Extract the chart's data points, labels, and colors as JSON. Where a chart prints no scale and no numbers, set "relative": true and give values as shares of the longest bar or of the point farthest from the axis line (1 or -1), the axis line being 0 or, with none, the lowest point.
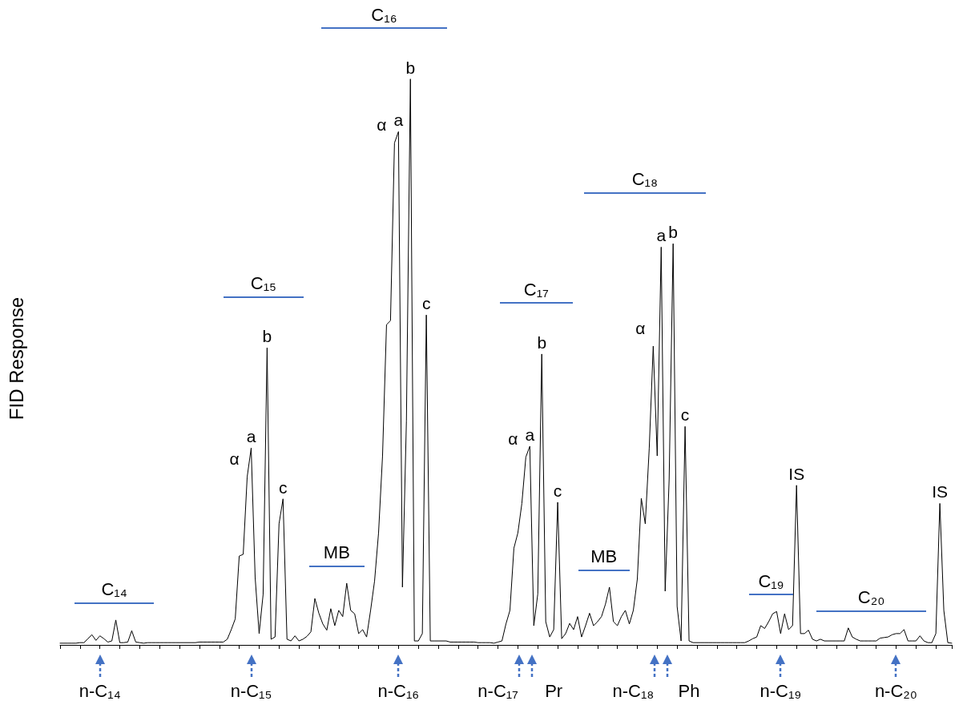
{
  "chart_data": {
    "type": "line",
    "ylabel": "FID Response",
    "relative": true,
    "tick_labels": "x",
    "color": "#000000",
    "categories": [
      null,
      null,
      null,
      null,
      null,
      null,
      null,
      null,
      null,
      null,
      "n-C₁₄",
      null,
      null,
      null,
      null,
      null,
      null,
      null,
      null,
      null,
      null,
      null,
      null,
      null,
      null,
      null,
      null,
      null,
      null,
      null,
      null,
      null,
      null,
      null,
      null,
      null,
      null,
      null,
      null,
      null,
      null,
      null,
      null,
      null,
      null,
      null,
      null,
      null,
      "n-C₁₅",
      null,
      null,
      null,
      null,
      null,
      null,
      null,
      null,
      null,
      null,
      null,
      null,
      null,
      null,
      null,
      null,
      null,
      null,
      null,
      null,
      null,
      null,
      null,
      null,
      null,
      null,
      null,
      null,
      null,
      null,
      null,
      null,
      null,
      null,
      null,
      null,
      "n-C₁₆",
      null,
      null,
      null,
      null,
      null,
      null,
      null,
      null,
      null,
      null,
      null,
      null,
      null,
      null,
      null,
      null,
      null,
      null,
      null,
      null,
      null,
      null,
      null,
      null,
      "n-C₁₇",
      null,
      null,
      null,
      null,
      null,
      null,
      null,
      null,
      null,
      null,
      null,
      null,
      null,
      "Pr",
      null,
      null,
      null,
      null,
      null,
      null,
      null,
      null,
      null,
      null,
      null,
      null,
      null,
      null,
      null,
      null,
      null,
      null,
      null,
      "n-C₁₈",
      null,
      null,
      null,
      null,
      null,
      null,
      null,
      null,
      null,
      null,
      null,
      null,
      null,
      "Ph",
      null,
      null,
      null,
      null,
      null,
      null,
      null,
      null,
      null,
      null,
      null,
      null,
      null,
      null,
      null,
      null,
      null,
      null,
      null,
      null,
      null,
      null,
      "n-C₁₉",
      null,
      null,
      null,
      null,
      null,
      null,
      null,
      null,
      null,
      null,
      null,
      null,
      null,
      null,
      null,
      null,
      null,
      null,
      null,
      null,
      null,
      null,
      null,
      null,
      null,
      null,
      null,
      null,
      "n-C₂₀",
      null,
      null,
      null,
      null,
      null,
      null,
      null,
      null,
      null,
      null,
      null,
      null,
      null,
      null
    ],
    "values": [
      0.003,
      0.003,
      0.003,
      0.003,
      0.003,
      0.004,
      0.004,
      0.011,
      0.018,
      0.008,
      0.016,
      0.011,
      0.005,
      0.007,
      0.044,
      0.004,
      0.004,
      0.005,
      0.025,
      0.005,
      0.004,
      0.003,
      0.004,
      0.004,
      0.004,
      0.004,
      0.004,
      0.004,
      0.004,
      0.004,
      0.004,
      0.004,
      0.004,
      0.004,
      0.004,
      0.005,
      0.005,
      0.005,
      0.005,
      0.005,
      0.005,
      0.005,
      0.01,
      0.027,
      0.046,
      0.157,
      0.16,
      0.297,
      0.348,
      0.119,
      0.02,
      0.089,
      0.525,
      0.01,
      0.014,
      0.214,
      0.258,
      0.01,
      0.007,
      0.016,
      0.007,
      0.01,
      0.015,
      0.023,
      0.082,
      0.056,
      0.037,
      0.026,
      0.064,
      0.034,
      0.061,
      0.05,
      0.109,
      0.061,
      0.055,
      0.02,
      0.027,
      0.014,
      0.061,
      0.113,
      0.198,
      0.334,
      0.566,
      0.573,
      0.887,
      0.907,
      0.102,
      0.396,
      1,
      0.007,
      0.007,
      0.02,
      0.583,
      0.007,
      0.007,
      0.007,
      0.007,
      0.007,
      0.005,
      0.005,
      0.005,
      0.005,
      0.005,
      0.005,
      0.005,
      0.004,
      0.004,
      0.004,
      0.004,
      0.003,
      0.005,
      0.007,
      0.037,
      0.061,
      0.171,
      0.198,
      0.25,
      0.332,
      0.351,
      0.034,
      0.09,
      0.514,
      0.041,
      0.014,
      0.027,
      0.252,
      0.011,
      0.02,
      0.038,
      0.027,
      0.05,
      0.014,
      0.034,
      0.056,
      0.034,
      0.041,
      0.05,
      0.072,
      0.102,
      0.041,
      0.034,
      0.05,
      0.061,
      0.037,
      0.061,
      0.116,
      0.259,
      0.214,
      0.348,
      0.528,
      0.334,
      0.703,
      0.095,
      0.293,
      0.709,
      0.068,
      0.007,
      0.386,
      0.007,
      0.004,
      0.004,
      0.004,
      0.004,
      0.004,
      0.004,
      0.004,
      0.004,
      0.004,
      0.004,
      0.004,
      0.004,
      0.004,
      0.004,
      0.007,
      0.011,
      0.014,
      0.034,
      0.029,
      0.041,
      0.055,
      0.059,
      0.02,
      0.055,
      0.027,
      0.034,
      0.282,
      0.02,
      0.02,
      0.026,
      0.01,
      0.007,
      0.01,
      0.007,
      0.007,
      0.007,
      0.007,
      0.007,
      0.007,
      0.03,
      0.014,
      0.01,
      0.007,
      0.007,
      0.007,
      0.007,
      0.007,
      0.012,
      0.013,
      0.014,
      0.018,
      0.02,
      0.02,
      0.027,
      0.007,
      0.007,
      0.007,
      0.016,
      0.007,
      0.004,
      0.004,
      0.02,
      0.25,
      0.061,
      0.004,
      0.003
    ],
    "annotations": [
      "C₁₄",
      "C₁₅",
      "MB",
      "C₁₆",
      "C₁₇",
      "MB",
      "C₁₈",
      "C₁₉",
      "C₂₀",
      "α",
      "a",
      "b",
      "c",
      "α",
      "a",
      "b",
      "c",
      "α",
      "a",
      "b",
      "c",
      "α",
      "a",
      "b",
      "c",
      "IS",
      "IS"
    ]
  }
}
